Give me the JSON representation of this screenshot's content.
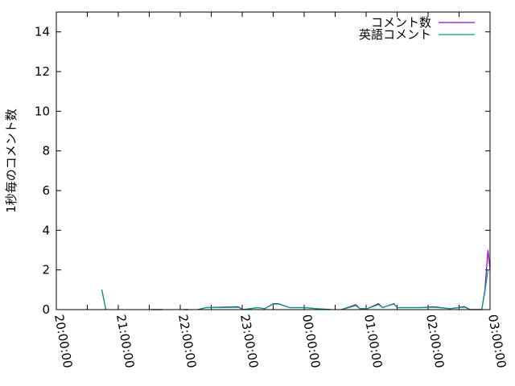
{
  "chart_data": {
    "type": "line",
    "title": "",
    "xlabel": "",
    "ylabel": "1秒毎のコメント数",
    "xlim": [
      "20:00:00",
      "03:00:00"
    ],
    "ylim": [
      0,
      15
    ],
    "xticks": [
      "20:00:00",
      "21:00:00",
      "22:00:00",
      "23:00:00",
      "00:00:00",
      "01:00:00",
      "02:00:00",
      "03:00:00"
    ],
    "yticks": [
      "0",
      "2",
      "4",
      "6",
      "8",
      "10",
      "12",
      "14"
    ],
    "grid": false,
    "legend_position": "top-right",
    "series": [
      {
        "name": "コメント数",
        "color": "#9400d3",
        "points": [
          [
            "20:44",
            1.0
          ],
          [
            "20:48",
            0
          ],
          null,
          [
            "21:32",
            0
          ],
          [
            "21:43",
            0
          ],
          null,
          [
            "22:03",
            0
          ],
          [
            "22:08",
            0
          ],
          null,
          [
            "22:17",
            0
          ],
          [
            "22:25",
            0.1
          ],
          [
            "22:40",
            0.12
          ],
          [
            "22:56",
            0.15
          ],
          [
            "23:01",
            0
          ],
          [
            "23:15",
            0.1
          ],
          [
            "23:22",
            0.05
          ],
          [
            "23:30",
            0.3
          ],
          [
            "23:35",
            0.3
          ],
          [
            "23:46",
            0.1
          ],
          [
            "00:00",
            0.1
          ],
          [
            "00:12",
            0.05
          ],
          [
            "00:26",
            0
          ],
          null,
          [
            "00:36",
            0
          ],
          [
            "00:50",
            0.25
          ],
          [
            "00:54",
            0.05
          ],
          [
            "01:01",
            0.05
          ],
          [
            "01:12",
            0.3
          ],
          [
            "01:16",
            0.1
          ],
          [
            "01:27",
            0.3
          ],
          [
            "01:30",
            0.1
          ],
          [
            "01:54",
            0.1
          ],
          [
            "02:05",
            0.15
          ],
          [
            "02:21",
            0.05
          ],
          [
            "02:35",
            0.15
          ],
          [
            "02:41",
            0
          ],
          [
            "02:52",
            0
          ],
          [
            "02:55",
            1.0
          ],
          [
            "02:58",
            3.0
          ],
          [
            "03:00",
            2.0
          ]
        ]
      },
      {
        "name": "英語コメント",
        "color": "#009e73",
        "points": [
          [
            "20:44",
            1.0
          ],
          [
            "20:48",
            0
          ],
          null,
          [
            "21:32",
            0
          ],
          [
            "21:43",
            0
          ],
          null,
          [
            "22:03",
            0
          ],
          [
            "22:08",
            0
          ],
          null,
          [
            "22:17",
            0
          ],
          [
            "22:25",
            0.1
          ],
          [
            "22:40",
            0.1
          ],
          [
            "22:56",
            0.12
          ],
          [
            "23:01",
            0
          ],
          [
            "23:15",
            0.1
          ],
          [
            "23:22",
            0.05
          ],
          [
            "23:30",
            0.28
          ],
          [
            "23:35",
            0.28
          ],
          [
            "23:46",
            0.1
          ],
          [
            "00:00",
            0.1
          ],
          [
            "00:12",
            0.05
          ],
          [
            "00:26",
            0
          ],
          null,
          [
            "00:36",
            0
          ],
          [
            "00:50",
            0.2
          ],
          [
            "00:54",
            0.05
          ],
          [
            "01:01",
            0.05
          ],
          [
            "01:12",
            0.25
          ],
          [
            "01:16",
            0.1
          ],
          [
            "01:27",
            0.28
          ],
          [
            "01:30",
            0.1
          ],
          [
            "01:54",
            0.1
          ],
          [
            "02:05",
            0.12
          ],
          [
            "02:21",
            0.05
          ],
          [
            "02:35",
            0.12
          ],
          [
            "02:41",
            0
          ],
          [
            "02:52",
            0
          ],
          [
            "02:55",
            0.9
          ],
          [
            "02:58",
            2.0
          ],
          [
            "03:00",
            2.0
          ]
        ]
      }
    ]
  }
}
